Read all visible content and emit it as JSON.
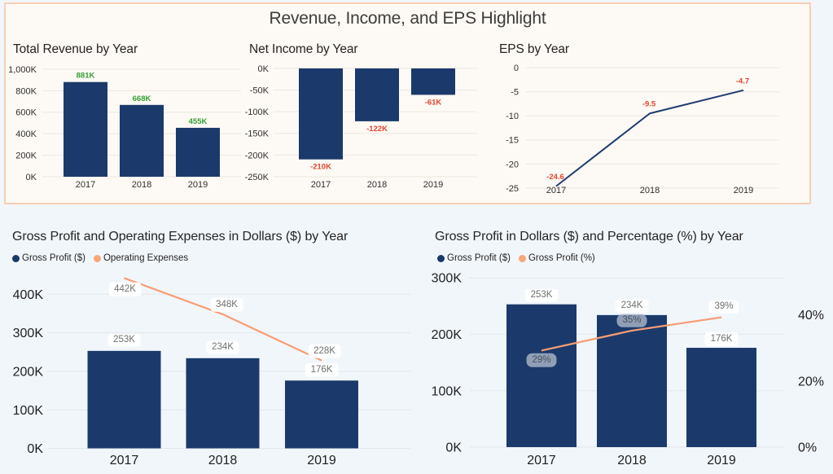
{
  "page": {
    "background_color": "#f1f6fb"
  },
  "highlight_panel": {
    "title": "Revenue, Income, and EPS Highlight",
    "background_color": "#fdf9f4",
    "border_color": "#f8ceb5"
  },
  "colors": {
    "bar_navy": "#1b3a6b",
    "line_navy": "#1d3c6e",
    "line_peach": "#f89e75",
    "positive_data_label": "#33a033",
    "negative_data_label": "#e2462d",
    "axis_text_top": "#303030",
    "axis_text_bottom": "#1f1f1f",
    "gridline_top": "#ece7e0",
    "gridline_bottom": "#e2e7ec"
  },
  "chart_data": [
    {
      "id": "total-revenue",
      "type": "bar",
      "title": "Total Revenue by Year",
      "categories": [
        "2017",
        "2018",
        "2019"
      ],
      "values": [
        881,
        668,
        455
      ],
      "unit": "K",
      "data_labels": [
        "881K",
        "668K",
        "455K"
      ],
      "data_label_color": "#33a033",
      "y_ticks": [
        "1,000K",
        "800K",
        "600K",
        "400K",
        "200K",
        "0K"
      ],
      "ylim": [
        0,
        1000
      ],
      "grid": true
    },
    {
      "id": "net-income",
      "type": "bar",
      "title": "Net Income by Year",
      "categories": [
        "2017",
        "2018",
        "2019"
      ],
      "values": [
        -210,
        -122,
        -61
      ],
      "unit": "K",
      "data_labels": [
        "-210K",
        "-122K",
        "-61K"
      ],
      "data_label_color": "#e2462d",
      "y_ticks": [
        "0K",
        "-50K",
        "-100K",
        "-150K",
        "-200K",
        "-250K"
      ],
      "ylim": [
        -250,
        0
      ],
      "grid": true
    },
    {
      "id": "eps",
      "type": "line",
      "title": "EPS by Year",
      "categories": [
        "2017",
        "2018",
        "2019"
      ],
      "values": [
        -24.6,
        -9.5,
        -4.7
      ],
      "data_labels": [
        "-24.6",
        "-9.5",
        "-4.7"
      ],
      "data_label_color": "#e2462d",
      "y_ticks": [
        "0",
        "-5",
        "-10",
        "-15",
        "-20",
        "-25"
      ],
      "ylim": [
        -25,
        0
      ],
      "grid": true
    },
    {
      "id": "gross-profit-opex",
      "type": "combo",
      "title": "Gross Profit and Operating Expenses in Dollars ($) by Year",
      "categories": [
        "2017",
        "2018",
        "2019"
      ],
      "series": [
        {
          "name": "Gross Profit ($)",
          "type": "bar",
          "values": [
            253,
            234,
            176
          ],
          "labels": [
            "253K",
            "234K",
            "176K"
          ]
        },
        {
          "name": "Operating Expenses",
          "type": "line",
          "values": [
            442,
            348,
            228
          ],
          "labels": [
            "442K",
            "348K",
            "228K"
          ]
        }
      ],
      "y_ticks": [
        "400K",
        "300K",
        "200K",
        "100K",
        "0K"
      ],
      "ylim": [
        0,
        450
      ],
      "legend_position": "top-left",
      "grid": true
    },
    {
      "id": "gross-profit-pct",
      "type": "combo-dual-axis",
      "title": "Gross Profit in Dollars ($) and Percentage (%) by Year",
      "categories": [
        "2017",
        "2018",
        "2019"
      ],
      "series": [
        {
          "name": "Gross Profit ($)",
          "type": "bar",
          "axis": "left",
          "values": [
            253,
            234,
            176
          ],
          "labels": [
            "253K",
            "234K",
            "176K"
          ]
        },
        {
          "name": "Gross Profit (%)",
          "type": "line",
          "axis": "right",
          "values": [
            29,
            35,
            39
          ],
          "labels": [
            "29%",
            "35%",
            "39%"
          ]
        }
      ],
      "y_ticks": [
        "300K",
        "200K",
        "100K",
        "0K"
      ],
      "ylim": [
        0,
        300
      ],
      "y2_ticks": [
        "40%",
        "20%",
        "0%"
      ],
      "y2lim": [
        0,
        44
      ],
      "legend_position": "top-left",
      "grid": true
    }
  ]
}
